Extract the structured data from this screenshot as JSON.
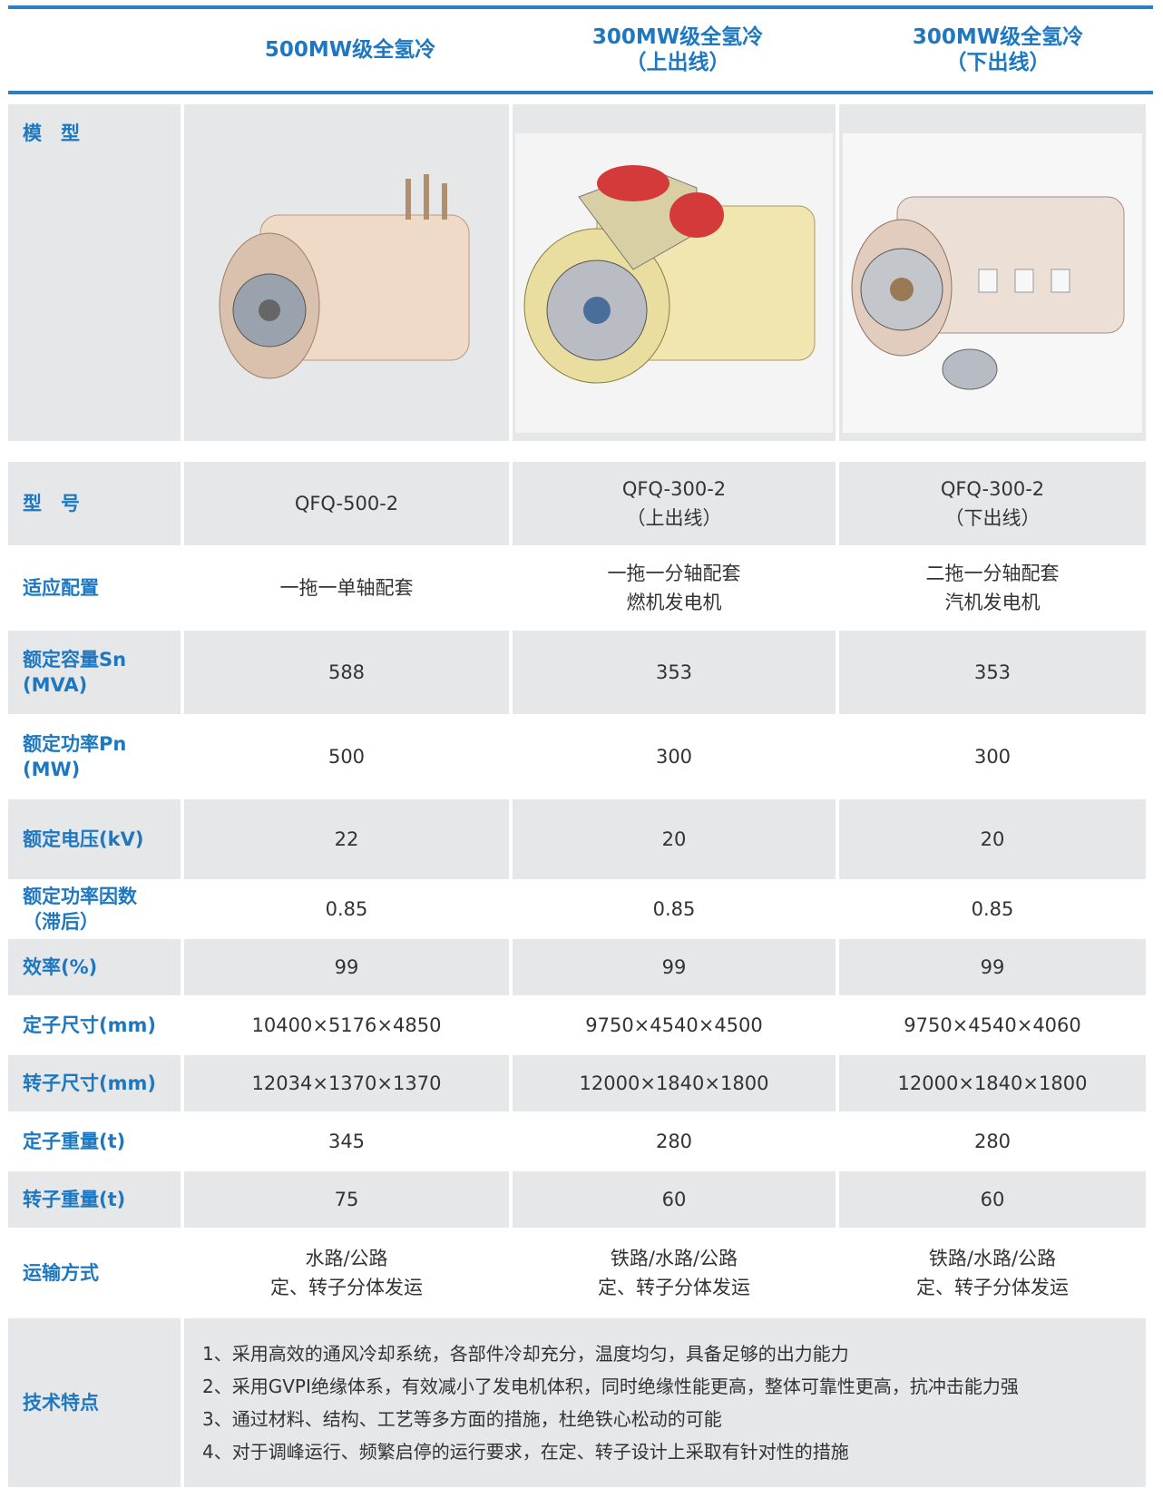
{
  "header": {
    "columns": [
      "500MW级全氢冷",
      "300MW级全氢冷\n（上出线）",
      "300MW级全氢冷\n（下出线）"
    ]
  },
  "model_row": {
    "label": "模　型"
  },
  "rows": [
    {
      "label": "型　号",
      "values": [
        "QFQ-500-2",
        "QFQ-300-2\n（上出线）",
        "QFQ-300-2\n（下出线）"
      ]
    },
    {
      "label": "适应配置",
      "values": [
        "一拖一单轴配套",
        "一拖一分轴配套\n燃机发电机",
        "二拖一分轴配套\n汽机发电机"
      ]
    },
    {
      "label": "额定容量Sn\n(MVA)",
      "values": [
        "588",
        "353",
        "353"
      ]
    },
    {
      "label": "额定功率Pn\n(MW)",
      "values": [
        "500",
        "300",
        "300"
      ]
    },
    {
      "label": "额定电压(kV)",
      "values": [
        "22",
        "20",
        "20"
      ]
    },
    {
      "label": "额定功率因数\n（滞后）",
      "values": [
        "0.85",
        "0.85",
        "0.85"
      ]
    },
    {
      "label": "效率(%)",
      "values": [
        "99",
        "99",
        "99"
      ]
    },
    {
      "label": "定子尺寸(mm)",
      "values": [
        "10400×5176×4850",
        "9750×4540×4500",
        "9750×4540×4060"
      ]
    },
    {
      "label": "转子尺寸(mm)",
      "values": [
        "12034×1370×1370",
        "12000×1840×1800",
        "12000×1840×1800"
      ]
    },
    {
      "label": "定子重量(t)",
      "values": [
        "345",
        "280",
        "280"
      ]
    },
    {
      "label": "转子重量(t)",
      "values": [
        "75",
        "60",
        "60"
      ]
    },
    {
      "label": "运输方式",
      "values": [
        "水路/公路\n定、转子分体发运",
        "铁路/水路/公路\n定、转子分体发运",
        "铁路/水路/公路\n定、转子分体发运"
      ]
    }
  ],
  "features": {
    "label": "技术特点",
    "items": [
      "1、采用高效的通风冷却系统，各部件冷却充分，温度均匀，具备足够的出力能力",
      "2、采用GVPI绝缘体系，有效减小了发电机体积，同时绝缘性能更高，整体可靠性更高，抗冲击能力强",
      "3、通过材料、结构、工艺等多方面的措施，杜绝铁心松动的可能",
      "4、对于调峰运行、频繁启停的运行要求，在定、转子设计上采取有针对性的措施"
    ]
  }
}
